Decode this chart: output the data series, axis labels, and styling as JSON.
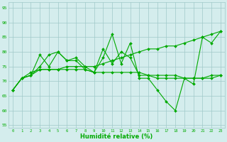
{
  "x": [
    0,
    1,
    2,
    3,
    4,
    5,
    6,
    7,
    8,
    9,
    10,
    11,
    12,
    13,
    14,
    15,
    16,
    17,
    18,
    19,
    20,
    21,
    22,
    23
  ],
  "line1": [
    67,
    71,
    72,
    79,
    75,
    80,
    77,
    77,
    74,
    73,
    78,
    86,
    76,
    83,
    71,
    71,
    67,
    63,
    60,
    71,
    69,
    85,
    83,
    87
  ],
  "line2": [
    67,
    71,
    72,
    75,
    79,
    80,
    77,
    78,
    75,
    73,
    81,
    76,
    80,
    78,
    72,
    72,
    71,
    71,
    71,
    71,
    71,
    71,
    72,
    72
  ],
  "line3": [
    67,
    71,
    73,
    74,
    74,
    74,
    74,
    74,
    74,
    73,
    73,
    73,
    73,
    73,
    73,
    72,
    72,
    72,
    72,
    71,
    71,
    71,
    71,
    72
  ],
  "line4": [
    67,
    71,
    72,
    74,
    74,
    74,
    75,
    75,
    75,
    75,
    76,
    77,
    78,
    79,
    80,
    81,
    81,
    82,
    82,
    83,
    84,
    85,
    86,
    87
  ],
  "line_color": "#00aa00",
  "bg_color": "#d4eded",
  "grid_color": "#a0c8c8",
  "xlabel": "Humidité relative (%)",
  "xlabel_color": "#00aa00",
  "ylim": [
    54,
    97
  ],
  "yticks": [
    55,
    60,
    65,
    70,
    75,
    80,
    85,
    90,
    95
  ],
  "xticks": [
    0,
    1,
    2,
    3,
    4,
    5,
    6,
    7,
    8,
    9,
    10,
    11,
    12,
    13,
    14,
    15,
    16,
    17,
    18,
    19,
    20,
    21,
    22,
    23
  ],
  "marker": "D",
  "markersize": 2.0,
  "linewidth": 0.8
}
